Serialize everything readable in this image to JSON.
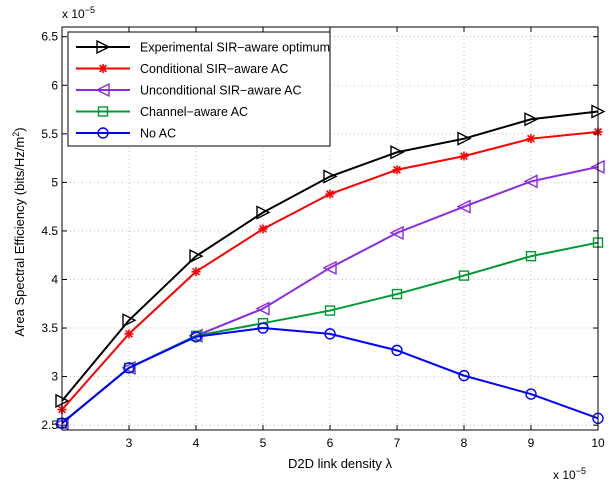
{
  "chart_data": {
    "type": "line",
    "xlabel": "D2D link density λ",
    "ylabel_main": "Area Spectral Efficiency (bits/Hz/m",
    "ylabel_sup": "2",
    "ylabel_close": ")",
    "x_multiplier": {
      "base": "x 10",
      "exp": "−5"
    },
    "y_multiplier": {
      "base": "x 10",
      "exp": "−5"
    },
    "xlim": [
      2,
      10
    ],
    "ylim": [
      2.45,
      6.6
    ],
    "xticks": [
      3,
      4,
      5,
      6,
      7,
      8,
      9,
      10
    ],
    "xtick_labels": [
      "3",
      "4",
      "5",
      "6",
      "7",
      "8",
      "9",
      "10"
    ],
    "yticks": [
      2.5,
      3,
      3.5,
      4,
      4.5,
      5,
      5.5,
      6,
      6.5
    ],
    "ytick_labels": [
      "2.5",
      "3",
      "3.5",
      "4",
      "4.5",
      "5",
      "5.5",
      "6",
      "6.5"
    ],
    "grid": true,
    "legend_position": "top-left",
    "x": [
      2,
      3,
      4,
      5,
      6,
      7,
      8,
      9,
      10
    ],
    "series": [
      {
        "name": "Experimental SIR−aware optimum",
        "color": "#000000",
        "marker": "triangle-right",
        "values": [
          2.75,
          3.58,
          4.24,
          4.69,
          5.06,
          5.31,
          5.45,
          5.65,
          5.73
        ]
      },
      {
        "name": "Conditional SIR−aware AC",
        "color": "#ff0000",
        "marker": "asterisk",
        "values": [
          2.66,
          3.44,
          4.08,
          4.52,
          4.88,
          5.13,
          5.27,
          5.45,
          5.52
        ]
      },
      {
        "name": "Unconditional SIR−aware AC",
        "color": "#8b2be2",
        "marker": "triangle-left",
        "values": [
          2.52,
          3.09,
          3.42,
          3.7,
          4.12,
          4.48,
          4.75,
          5.01,
          5.16
        ]
      },
      {
        "name": "Channel−aware AC",
        "color": "#009933",
        "marker": "square",
        "values": [
          2.52,
          3.09,
          3.42,
          3.55,
          3.68,
          3.85,
          4.04,
          4.24,
          4.38
        ]
      },
      {
        "name": "No AC",
        "color": "#0000ff",
        "marker": "circle",
        "values": [
          2.52,
          3.09,
          3.41,
          3.5,
          3.44,
          3.27,
          3.01,
          2.82,
          2.57
        ]
      }
    ]
  }
}
